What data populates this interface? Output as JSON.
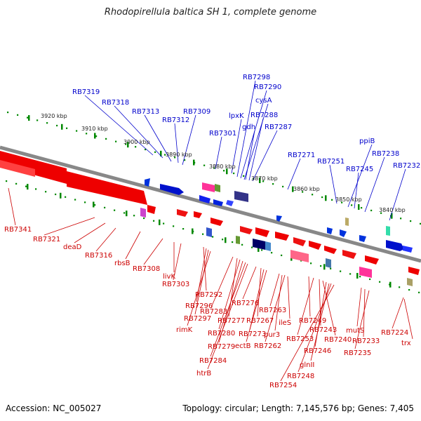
{
  "title": "Rhodopirellula baltica SH 1, complete genome",
  "footer": {
    "accession": "Accession: NC_005027",
    "summary": "Topology: circular; Length: 7,145,576 bp; Genes: 7,405"
  },
  "colors": {
    "forward_label": "#0000cc",
    "reverse_label": "#cc0000",
    "backbone": "#888888",
    "ticks": "#008800"
  },
  "tick_labels": [
    "3920 kbp",
    "3910 kbp",
    "3900 kbp",
    "3890 kbp",
    "3880 kbp",
    "3870 kbp",
    "3860 kbp",
    "3850 kbp",
    "3840 kbp"
  ],
  "forward_genes": [
    "RB7319",
    "RB7318",
    "RB7313",
    "RB7312",
    "RB7309",
    "RB7301",
    "lpxK",
    "RB7298",
    "RB7290",
    "cysA",
    "gdh",
    "RB7288",
    "RB7287",
    "RB7271",
    "RB7251",
    "ppiB",
    "RB7245",
    "RB7238",
    "RB7232"
  ],
  "reverse_genes": [
    "RB7341",
    "RB7321",
    "deaD",
    "RB7316",
    "rbsB",
    "RB7308",
    "livK",
    "RB7303",
    "RB7292",
    "RB7296",
    "RB7297",
    "rimK",
    "RB7283",
    "RB7277",
    "RB7280",
    "RB7279",
    "RB7284",
    "htrB",
    "RB7276",
    "RB7267",
    "RB7273",
    "ectB",
    "RB7263",
    "pur3",
    "RB7262",
    "ileS",
    "RB7249",
    "RB7253",
    "RB7243",
    "RB7240",
    "RB7246",
    "glnII",
    "RB7248",
    "RB7254",
    "mutS",
    "RB7233",
    "RB7235",
    "RB7224",
    "trx"
  ]
}
